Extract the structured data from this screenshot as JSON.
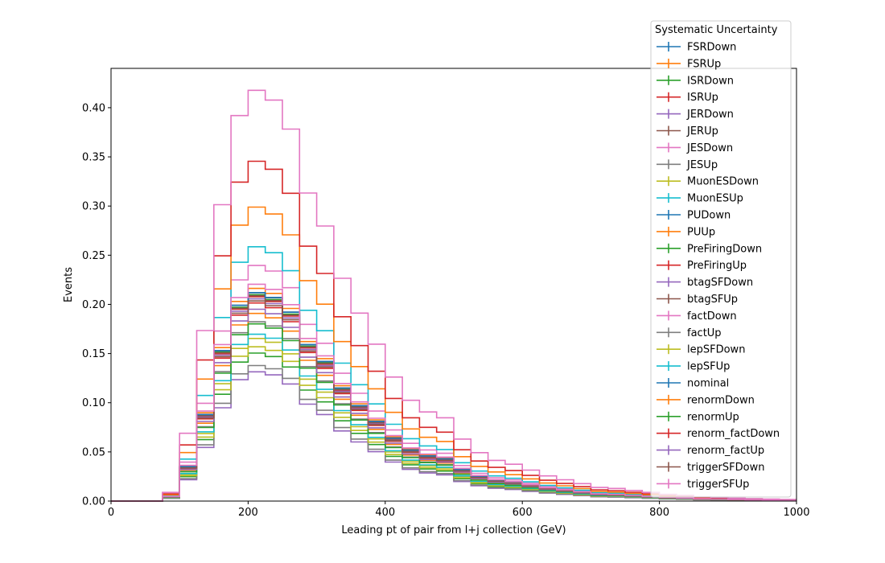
{
  "chart_data": {
    "type": "line",
    "title": "",
    "xlabel": "Leading pt of pair from l+j collection (GeV)",
    "ylabel": "Events",
    "xlim": [
      0,
      1000
    ],
    "ylim": [
      0,
      0.44
    ],
    "grid": false,
    "drawstyle": "steps",
    "x_ticks": [
      0,
      200,
      400,
      600,
      800,
      1000
    ],
    "x_tick_labels": [
      "0",
      "200",
      "400",
      "600",
      "800",
      "1000"
    ],
    "y_ticks": [
      0,
      0.05,
      0.1,
      0.15,
      0.2,
      0.25,
      0.3,
      0.35,
      0.4
    ],
    "y_tick_labels": [
      "0.00",
      "0.05",
      "0.10",
      "0.15",
      "0.20",
      "0.25",
      "0.30",
      "0.35",
      "0.40"
    ],
    "bin_edges": [
      0,
      25,
      50,
      75,
      100,
      125,
      150,
      175,
      200,
      225,
      250,
      275,
      300,
      325,
      350,
      375,
      400,
      425,
      450,
      475,
      500,
      525,
      550,
      575,
      600,
      625,
      650,
      675,
      700,
      725,
      750,
      775,
      800,
      825,
      850,
      875,
      900,
      925,
      950,
      975,
      1000
    ],
    "legend": {
      "title": "Systematic Uncertainty",
      "placement": "top-right, extending above the axes"
    },
    "nominal_shape": [
      0,
      0,
      0,
      0.0045,
      0.035,
      0.088,
      0.153,
      0.199,
      0.212,
      0.207,
      0.192,
      0.159,
      0.142,
      0.115,
      0.097,
      0.081,
      0.064,
      0.052,
      0.046,
      0.043,
      0.032,
      0.025,
      0.021,
      0.019,
      0.016,
      0.013,
      0.011,
      0.009,
      0.007,
      0.0065,
      0.0055,
      0.0045,
      0.0035,
      0.003,
      0.0022,
      0.002,
      0.0015,
      0.0012,
      0.001,
      0.0008
    ],
    "series": [
      {
        "name": "FSRDown",
        "color": "#1f77b4",
        "scale": 1.0
      },
      {
        "name": "FSRUp",
        "color": "#ff7f0e",
        "scale": 1.02
      },
      {
        "name": "ISRDown",
        "color": "#2ca02c",
        "scale": 0.99
      },
      {
        "name": "ISRUp",
        "color": "#d62728",
        "scale": 0.98
      },
      {
        "name": "JERDown",
        "color": "#9467bd",
        "scale": 0.97
      },
      {
        "name": "JERUp",
        "color": "#8c564b",
        "scale": 0.985
      },
      {
        "name": "JESDown",
        "color": "#e377c2",
        "scale": 1.13
      },
      {
        "name": "JESUp",
        "color": "#7f7f7f",
        "scale": 0.86
      },
      {
        "name": "MuonESDown",
        "color": "#bcbd22",
        "scale": 0.78
      },
      {
        "name": "MuonESUp",
        "color": "#17becf",
        "scale": 1.22
      },
      {
        "name": "PUDown",
        "color": "#1f77b4",
        "scale": 1.0
      },
      {
        "name": "PUUp",
        "color": "#ff7f0e",
        "scale": 1.41
      },
      {
        "name": "PreFiringDown",
        "color": "#2ca02c",
        "scale": 0.71
      },
      {
        "name": "PreFiringUp",
        "color": "#d62728",
        "scale": 1.63
      },
      {
        "name": "btagSFDown",
        "color": "#9467bd",
        "scale": 0.62
      },
      {
        "name": "btagSFUp",
        "color": "#8c564b",
        "scale": 1.0
      },
      {
        "name": "factDown",
        "color": "#e377c2",
        "scale": 1.97
      },
      {
        "name": "factUp",
        "color": "#7f7f7f",
        "scale": 0.65
      },
      {
        "name": "lepSFDown",
        "color": "#bcbd22",
        "scale": 0.74
      },
      {
        "name": "lepSFUp",
        "color": "#17becf",
        "scale": 0.8
      },
      {
        "name": "nominal",
        "color": "#1f77b4",
        "scale": 1.0
      },
      {
        "name": "renormDown",
        "color": "#ff7f0e",
        "scale": 0.9
      },
      {
        "name": "renormUp",
        "color": "#2ca02c",
        "scale": 0.85
      },
      {
        "name": "renorm_factDown",
        "color": "#d62728",
        "scale": 0.95
      },
      {
        "name": "renorm_factUp",
        "color": "#9467bd",
        "scale": 0.92
      },
      {
        "name": "triggerSFDown",
        "color": "#8c564b",
        "scale": 0.96
      },
      {
        "name": "triggerSFUp",
        "color": "#e377c2",
        "scale": 1.04
      }
    ]
  }
}
